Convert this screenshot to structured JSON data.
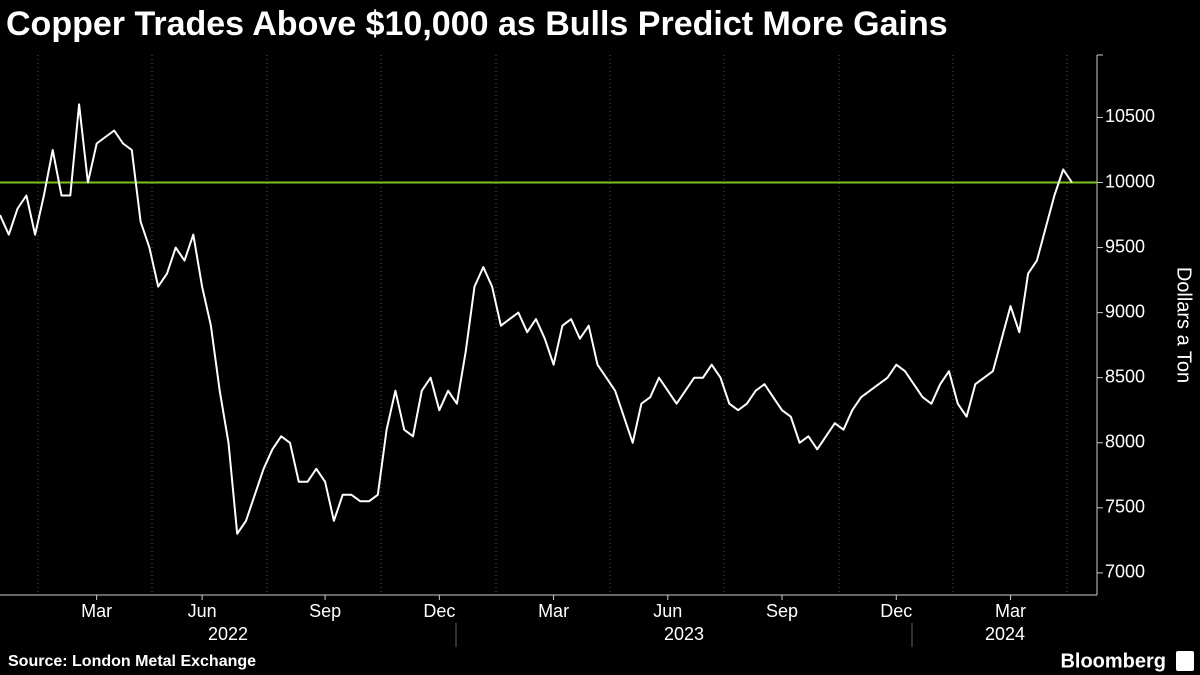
{
  "chart_data": {
    "type": "line",
    "title": "Copper Trades Above $10,000 as Bulls Predict More Gains",
    "y_label": "Dollars a Ton",
    "source": "Source: London Metal Exchange",
    "brand": "Bloomberg",
    "color": "#ffffff",
    "reference_line": {
      "value": 10000,
      "color": "#7dc21e"
    },
    "ylim": [
      6830,
      10980
    ],
    "yticks": [
      7000,
      7500,
      8000,
      8500,
      9000,
      9500,
      10000,
      10500
    ],
    "x_groups": [
      "2022",
      "2023",
      "2024"
    ],
    "categories": [
      null,
      null,
      null,
      null,
      null,
      null,
      null,
      null,
      null,
      null,
      null,
      "Mar",
      null,
      null,
      null,
      null,
      null,
      null,
      null,
      null,
      null,
      null,
      null,
      "Jun",
      null,
      null,
      null,
      null,
      null,
      null,
      null,
      null,
      null,
      null,
      null,
      null,
      null,
      "Sep",
      null,
      null,
      null,
      null,
      null,
      null,
      null,
      null,
      null,
      null,
      null,
      null,
      "Dec",
      null,
      null,
      null,
      null,
      null,
      null,
      null,
      null,
      null,
      null,
      null,
      null,
      "Mar",
      null,
      null,
      null,
      null,
      null,
      null,
      null,
      null,
      null,
      null,
      null,
      null,
      "Jun",
      null,
      null,
      null,
      null,
      null,
      null,
      null,
      null,
      null,
      null,
      null,
      null,
      "Sep",
      null,
      null,
      null,
      null,
      null,
      null,
      null,
      null,
      null,
      null,
      null,
      null,
      "Dec",
      null,
      null,
      null,
      null,
      null,
      null,
      null,
      null,
      null,
      null,
      null,
      null,
      "Mar",
      null,
      null,
      null,
      null,
      null,
      null,
      null
    ],
    "values": [
      9750,
      9600,
      9800,
      9900,
      9600,
      9900,
      10250,
      9900,
      9900,
      10600,
      10000,
      10300,
      10350,
      10400,
      10300,
      10250,
      9700,
      9500,
      9200,
      9300,
      9500,
      9400,
      9600,
      9200,
      8900,
      8400,
      8000,
      7300,
      7400,
      7600,
      7800,
      7950,
      8050,
      8000,
      7700,
      7700,
      7800,
      7700,
      7400,
      7600,
      7600,
      7550,
      7550,
      7600,
      8100,
      8400,
      8100,
      8050,
      8400,
      8500,
      8250,
      8400,
      8300,
      8700,
      9200,
      9350,
      9200,
      8900,
      8950,
      9000,
      8850,
      8950,
      8800,
      8600,
      8900,
      8950,
      8800,
      8900,
      8600,
      8500,
      8400,
      8200,
      8000,
      8300,
      8350,
      8500,
      8400,
      8300,
      8400,
      8500,
      8500,
      8600,
      8500,
      8300,
      8250,
      8300,
      8400,
      8450,
      8350,
      8250,
      8200,
      8000,
      8050,
      7950,
      8050,
      8150,
      8100,
      8250,
      8350,
      8400,
      8450,
      8500,
      8600,
      8550,
      8450,
      8350,
      8300,
      8450,
      8550,
      8300,
      8200,
      8450,
      8500,
      8550,
      8800,
      9050,
      8850,
      9300,
      9400,
      9650,
      9900,
      10100,
      10000
    ]
  }
}
